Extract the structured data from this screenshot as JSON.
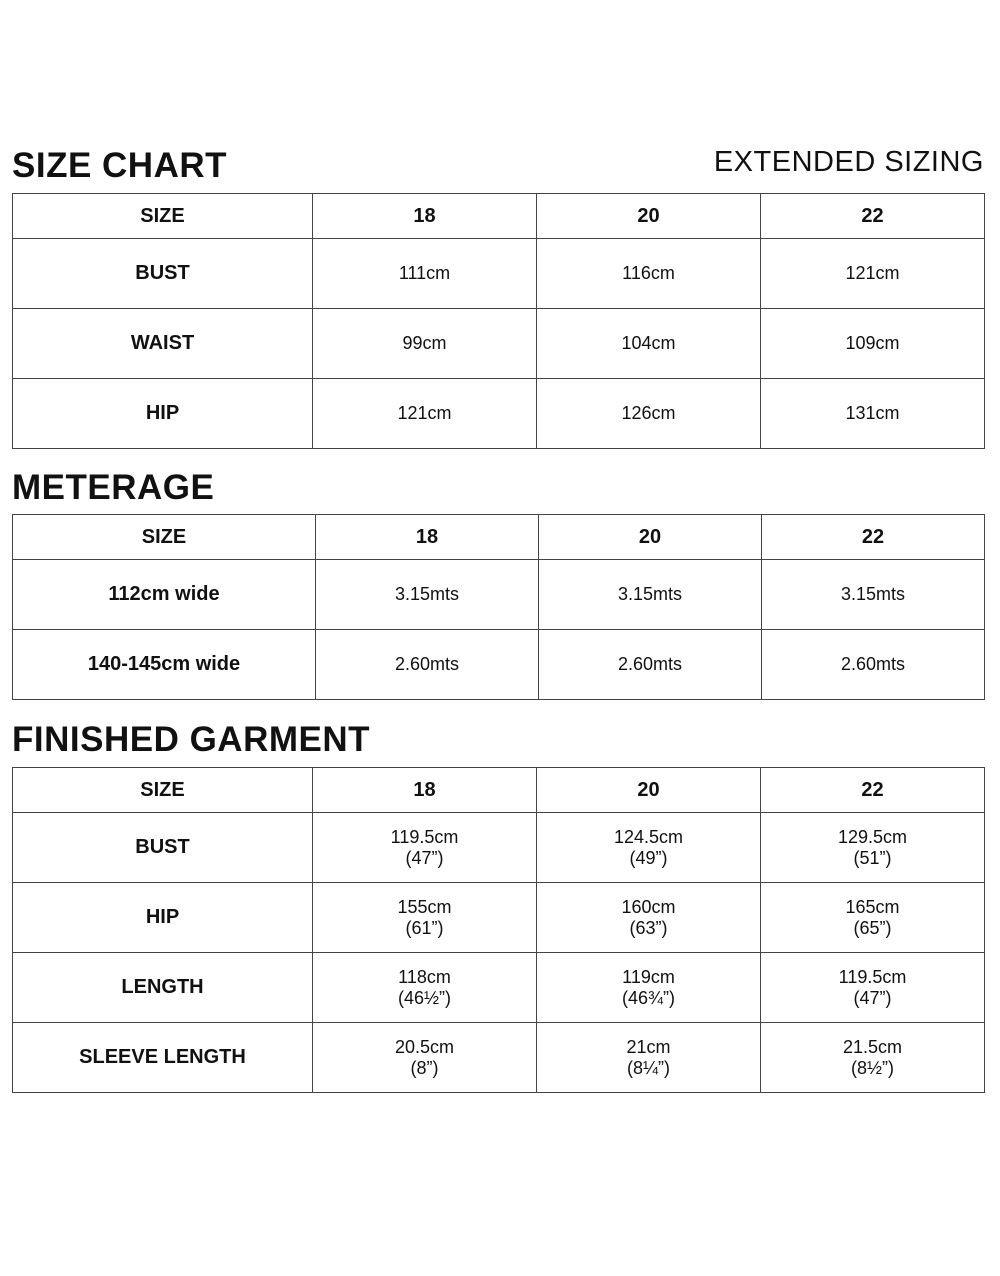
{
  "size_chart": {
    "title": "SIZE CHART",
    "subtitle": "EXTENDED SIZING",
    "header": [
      "SIZE",
      "18",
      "20",
      "22"
    ],
    "rows": [
      {
        "label": "BUST",
        "values": [
          "111cm",
          "116cm",
          "121cm"
        ]
      },
      {
        "label": "WAIST",
        "values": [
          "99cm",
          "104cm",
          "109cm"
        ]
      },
      {
        "label": "HIP",
        "values": [
          "121cm",
          "126cm",
          "131cm"
        ]
      }
    ]
  },
  "meterage": {
    "title": "METERAGE",
    "header": [
      "SIZE",
      "18",
      "20",
      "22"
    ],
    "rows": [
      {
        "label": "112cm wide",
        "values": [
          "3.15mts",
          "3.15mts",
          "3.15mts"
        ]
      },
      {
        "label": "140-145cm wide",
        "values": [
          "2.60mts",
          "2.60mts",
          "2.60mts"
        ]
      }
    ]
  },
  "finished_garment": {
    "title": "FINISHED GARMENT",
    "header": [
      "SIZE",
      "18",
      "20",
      "22"
    ],
    "rows": [
      {
        "label": "BUST",
        "values": [
          {
            "cm": "119.5cm",
            "in": "(47”)"
          },
          {
            "cm": "124.5cm",
            "in": "(49”)"
          },
          {
            "cm": "129.5cm",
            "in": "(51”)"
          }
        ]
      },
      {
        "label": "HIP",
        "values": [
          {
            "cm": "155cm",
            "in": "(61”)"
          },
          {
            "cm": "160cm",
            "in": "(63”)"
          },
          {
            "cm": "165cm",
            "in": "(65”)"
          }
        ]
      },
      {
        "label": "LENGTH",
        "values": [
          {
            "cm": "118cm",
            "in": "(46½”)"
          },
          {
            "cm": "119cm",
            "in": "(46¾”)"
          },
          {
            "cm": "119.5cm",
            "in": "(47”)"
          }
        ]
      },
      {
        "label": "SLEEVE LENGTH",
        "values": [
          {
            "cm": "20.5cm",
            "in": "(8”)"
          },
          {
            "cm": "21cm",
            "in": "(8¼”)"
          },
          {
            "cm": "21.5cm",
            "in": "(8½”)"
          }
        ]
      }
    ]
  }
}
